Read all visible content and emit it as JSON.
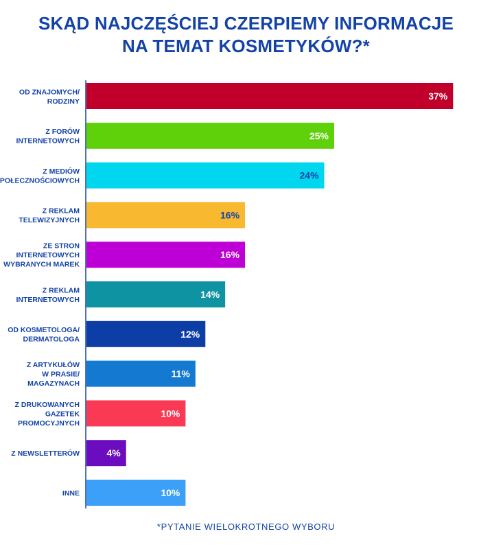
{
  "title_lines": [
    "SKĄD NAJCZĘŚCIEJ CZERPIEMY INFORMACJE",
    "NA TEMAT KOSMETYKÓW?*"
  ],
  "footnote": "*PYTANIE WIELOKROTNEGO WYBORU",
  "chart_data": {
    "type": "bar",
    "orientation": "horizontal",
    "title": "SKĄD NAJCZĘŚCIEJ CZERPIEMY INFORMACJE NA TEMAT KOSMETYKÓW?*",
    "unit": "%",
    "xlim": [
      0,
      40
    ],
    "grid": false,
    "legend": "none",
    "categories": [
      "OD ZNAJOMYCH/\nRODZINY",
      "Z FORÓW\nINTERNETOWYCH",
      "Z MEDIÓW\nSPOŁECZNOŚCIOWYCH",
      "Z REKLAM\nTELEWIZYJNYCH",
      "ZE STRON\nINTERNETOWYCH\nWYBRANYCH MAREK",
      "Z REKLAM\nINTERNETOWYCH",
      "OD KOSMETOLOGA/\nDERMATOLOGA",
      "Z ARTYKUŁÓW\nW PRASIE/\nMAGAZYNACH",
      "Z DRUKOWANYCH\nGAZETEK\nPROMOCYJNYCH",
      "Z NEWSLETTERÓW",
      "INNE"
    ],
    "values": [
      37,
      25,
      24,
      16,
      16,
      14,
      12,
      11,
      10,
      4,
      10
    ],
    "data_labels": [
      "37%",
      "25%",
      "24%",
      "16%",
      "16%",
      "14%",
      "12%",
      "11%",
      "10%",
      "4%",
      "10%"
    ],
    "colors": [
      "#c0002a",
      "#5fd10a",
      "#00d7ef",
      "#f8b830",
      "#bd00d6",
      "#0e93a3",
      "#0d3ea6",
      "#1479d1",
      "#fa3954",
      "#6b0dbf",
      "#3da0f8"
    ],
    "label_colors": [
      "#ffffff",
      "#ffffff",
      "#1443a8",
      "#1443a8",
      "#ffffff",
      "#ffffff",
      "#ffffff",
      "#ffffff",
      "#ffffff",
      "#ffffff",
      "#ffffff"
    ],
    "axis_color": "#1443a8",
    "label_color": "#1443a8"
  }
}
